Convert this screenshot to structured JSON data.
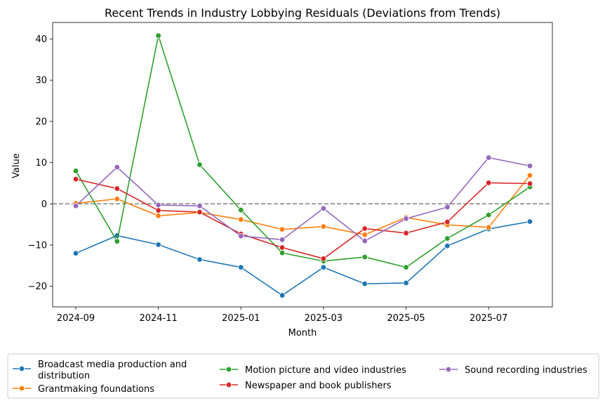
{
  "chart_data": {
    "type": "line",
    "title": "Recent Trends in Industry Lobbying Residuals (Deviations from Trends)",
    "xlabel": "Month",
    "ylabel": "Value",
    "x": [
      "2024-09",
      "2024-10",
      "2024-11",
      "2024-12",
      "2025-01",
      "2025-02",
      "2025-03",
      "2025-04",
      "2025-05",
      "2025-06",
      "2025-07",
      "2025-08"
    ],
    "x_ticks": [
      "2024-09",
      "2024-11",
      "2025-01",
      "2025-03",
      "2025-05",
      "2025-07"
    ],
    "y_ticks": [
      40,
      30,
      20,
      10,
      0,
      -10,
      -20
    ],
    "y_tick_labels": [
      "40",
      "30",
      "20",
      "10",
      "0",
      "−10",
      "−20"
    ],
    "ylim": [
      -25,
      44
    ],
    "reference_line": {
      "y": 0,
      "style": "dashed",
      "color": "#808080"
    },
    "grid": false,
    "legend_position": "bottom",
    "series": [
      {
        "name": "Broadcast media production and distribution",
        "legend_lines": [
          "Broadcast media production and",
          "distribution"
        ],
        "color": "#1f77b4",
        "values": [
          -12.0,
          -7.7,
          -9.9,
          -13.5,
          -15.4,
          -22.2,
          -15.4,
          -19.4,
          -19.2,
          -10.2,
          -6.1,
          -4.3
        ]
      },
      {
        "name": "Grantmaking foundations",
        "legend_lines": [
          "Grantmaking foundations"
        ],
        "color": "#ff7f0e",
        "values": [
          0.1,
          1.2,
          -2.9,
          -2.1,
          -3.8,
          -6.2,
          -5.5,
          -7.5,
          -3.3,
          -5.1,
          -5.7,
          6.9
        ]
      },
      {
        "name": "Motion picture and video industries",
        "legend_lines": [
          "Motion picture and video industries"
        ],
        "color": "#2ca02c",
        "values": [
          8.0,
          -9.1,
          40.8,
          9.5,
          -1.5,
          -11.9,
          -13.9,
          -12.9,
          -15.4,
          -8.4,
          -2.7,
          4.1
        ]
      },
      {
        "name": "Newspaper and book publishers",
        "legend_lines": [
          "Newspaper and book publishers"
        ],
        "color": "#d62728",
        "values": [
          6.0,
          3.7,
          -1.6,
          -2.0,
          -7.3,
          -10.6,
          -13.3,
          -6.0,
          -7.1,
          -4.4,
          5.1,
          4.9
        ]
      },
      {
        "name": "Sound recording industries",
        "legend_lines": [
          "Sound recording industries"
        ],
        "color": "#9467bd",
        "values": [
          -0.5,
          8.9,
          -0.3,
          -0.5,
          -7.8,
          -8.7,
          -1.1,
          -9.0,
          -3.6,
          -0.8,
          11.2,
          9.2
        ]
      }
    ]
  }
}
